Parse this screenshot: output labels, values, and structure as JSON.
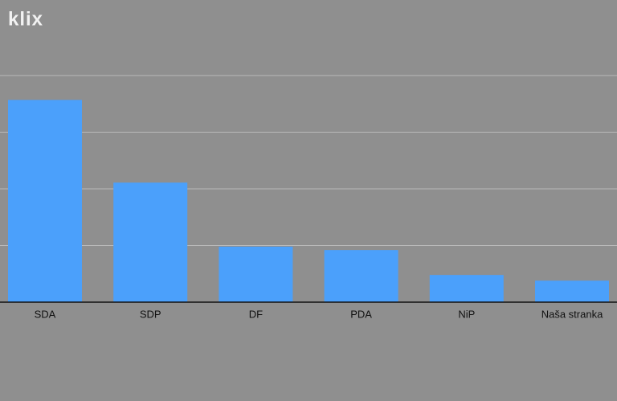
{
  "logo": "klix",
  "chart_data": {
    "type": "bar",
    "categories": [
      "SDA",
      "SDP",
      "DF",
      "PDA",
      "NiP",
      "Naša stranka"
    ],
    "values": [
      3.57,
      2.11,
      0.98,
      0.92,
      0.48,
      0.38
    ],
    "color": "#4ba0fb",
    "ylim": [
      0,
      5
    ],
    "yticks": [
      1,
      2,
      3,
      4
    ],
    "grid": true,
    "tick_labels": false
  }
}
